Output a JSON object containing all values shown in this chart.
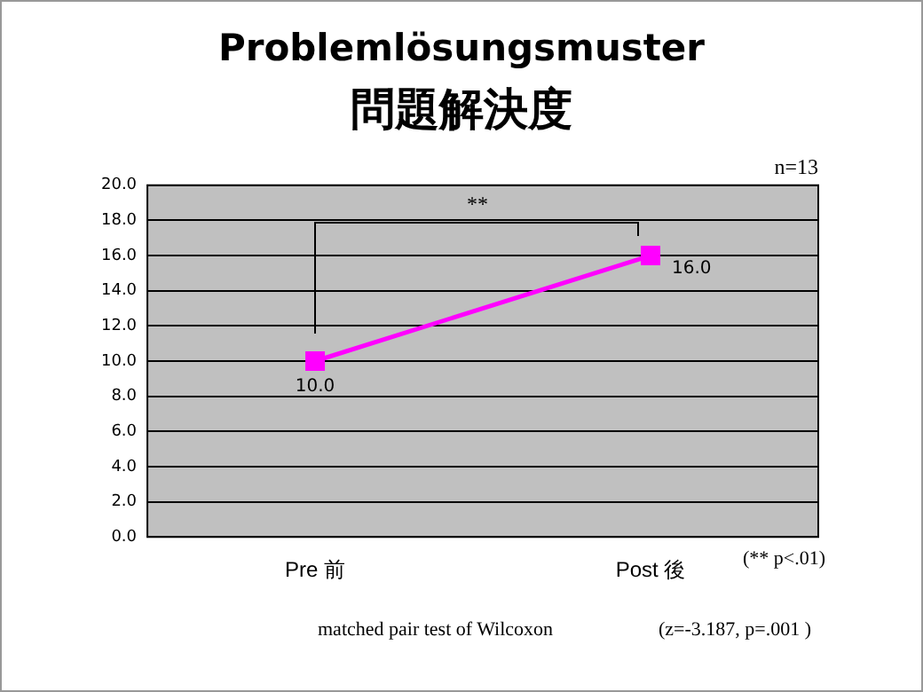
{
  "chart_data": {
    "type": "line",
    "title": "Problemlösungsmuster",
    "subtitle": "問題解決度",
    "categories": [
      "Pre 前",
      "Post 後"
    ],
    "series": [
      {
        "color": "#ff00ff",
        "values": [
          10.0,
          16.0
        ],
        "value_labels": [
          "10.0",
          "16.0"
        ]
      }
    ],
    "ylim": [
      0,
      20
    ],
    "yticks": [
      {
        "value": 0,
        "label": "0.0"
      },
      {
        "value": 2,
        "label": "2.0"
      },
      {
        "value": 4,
        "label": "4.0"
      },
      {
        "value": 6,
        "label": "6.0"
      },
      {
        "value": 8,
        "label": "8.0"
      },
      {
        "value": 10,
        "label": "10.0"
      },
      {
        "value": 12,
        "label": "12.0"
      },
      {
        "value": 14,
        "label": "14.0"
      },
      {
        "value": 16,
        "label": "16.0"
      },
      {
        "value": 18,
        "label": "18.0"
      },
      {
        "value": 20,
        "label": "20.0"
      }
    ],
    "grid": "y",
    "legend": false,
    "marker": "square",
    "line_style": "solid",
    "annotations": [
      "n=13",
      "**",
      "(** p<.01)",
      "matched pair test of Wilcoxon",
      "(z=-3.187, p=.001 )"
    ]
  }
}
